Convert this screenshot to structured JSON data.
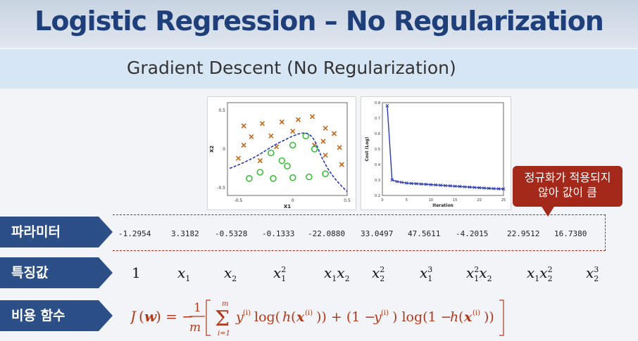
{
  "title": "Logistic Regression – No Regularization",
  "subtitle": "Gradient Descent (No Regularization)",
  "callout": {
    "line1": "정규화가 적용되지",
    "line2": "않아 값이 큼"
  },
  "labels": {
    "params": "파라미터",
    "features": "특징값",
    "cost": "비용 함수"
  },
  "parameters": [
    "-1.2954",
    "3.3182",
    "-0.5328",
    "-0.1333",
    "-22.0880",
    "33.0497",
    "47.5611",
    "-4.2015",
    "22.9512",
    "16.7380"
  ],
  "feature_one": "1",
  "scatter_plot": {
    "xlabel": "X1",
    "ylabel": "X2",
    "xticks": [
      "-0.5",
      "0",
      "0.5"
    ],
    "yticks": [
      "0.5",
      "0",
      "-0.5"
    ],
    "class_x": [
      [
        -0.45,
        0.3
      ],
      [
        -0.28,
        0.33
      ],
      [
        -0.1,
        0.35
      ],
      [
        0.05,
        0.38
      ],
      [
        0.18,
        0.42
      ],
      [
        -0.38,
        0.16
      ],
      [
        -0.2,
        0.17
      ],
      [
        0.0,
        0.23
      ],
      [
        0.3,
        0.27
      ],
      [
        -0.45,
        0.05
      ],
      [
        0.28,
        0.1
      ],
      [
        0.38,
        0.2
      ],
      [
        -0.15,
        0.03
      ],
      [
        -0.5,
        -0.12
      ],
      [
        0.43,
        0.02
      ],
      [
        0.45,
        -0.2
      ],
      [
        0.3,
        -0.08
      ],
      [
        0.2,
        0.05
      ],
      [
        -0.3,
        -0.15
      ]
    ],
    "class_o": [
      [
        0.12,
        0.17
      ],
      [
        0.0,
        0.05
      ],
      [
        -0.2,
        -0.05
      ],
      [
        -0.1,
        -0.15
      ],
      [
        0.2,
        0.0
      ],
      [
        -0.3,
        -0.3
      ],
      [
        -0.18,
        -0.38
      ],
      [
        0.0,
        -0.37
      ],
      [
        0.15,
        -0.36
      ],
      [
        0.3,
        -0.32
      ],
      [
        -0.4,
        -0.38
      ],
      [
        -0.05,
        -0.22
      ]
    ],
    "colors": {
      "x": "#c06a1c",
      "o": "#3cbf3c",
      "boundary": "#2b3ab0"
    }
  },
  "cost_plot": {
    "xlabel": "Iteration",
    "ylabel": "Cost (Log)",
    "xticks": [
      "0",
      "5",
      "10",
      "15",
      "20",
      "25"
    ],
    "yticks": [
      "0.8",
      "0.7",
      "0.6",
      "0.5",
      "0.4",
      "0.3",
      "0.2"
    ],
    "values": [
      0.78,
      0.3,
      0.29,
      0.285,
      0.28,
      0.278,
      0.276,
      0.274,
      0.272,
      0.27,
      0.268,
      0.266,
      0.264,
      0.262,
      0.26,
      0.258,
      0.256,
      0.254,
      0.252,
      0.25,
      0.248,
      0.246,
      0.244,
      0.243,
      0.242
    ],
    "color": "#2b3ab0"
  }
}
